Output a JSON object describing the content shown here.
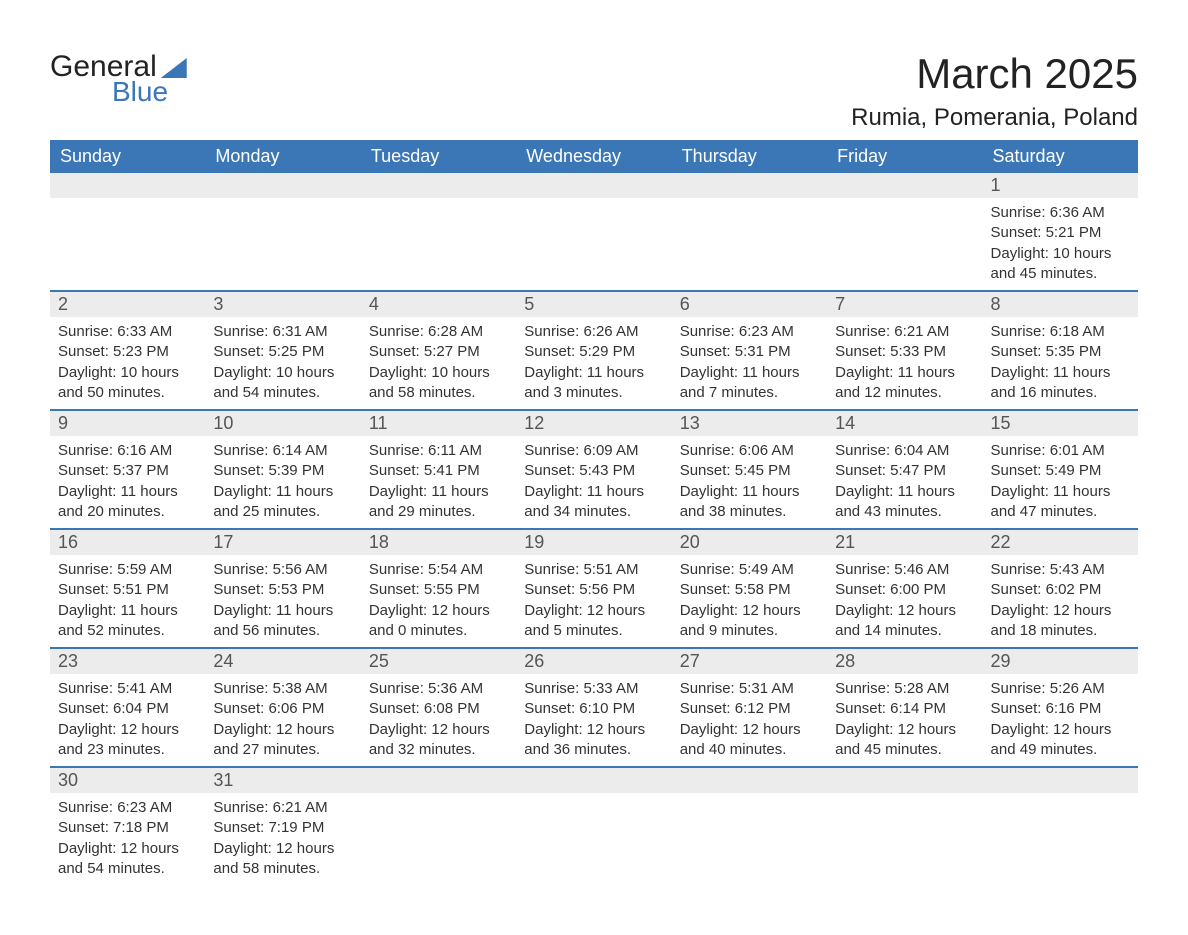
{
  "branding": {
    "logo_word1": "General",
    "logo_word2": "Blue",
    "logo_accent_color": "#3b77b7"
  },
  "header": {
    "title": "March 2025",
    "location": "Rumia, Pomerania, Poland"
  },
  "calendar": {
    "type": "table",
    "background_color": "#ffffff",
    "header_bg": "#3b77b7",
    "header_fg": "#ffffff",
    "daynum_bg": "#ececec",
    "row_divider_color": "#3b77b7",
    "text_color": "#333333",
    "title_fontsize": 42,
    "location_fontsize": 24,
    "header_fontsize": 18,
    "body_fontsize": 15,
    "columns": [
      "Sunday",
      "Monday",
      "Tuesday",
      "Wednesday",
      "Thursday",
      "Friday",
      "Saturday"
    ],
    "weeks": [
      [
        {
          "day": "",
          "sunrise": "",
          "sunset": "",
          "daylight": ""
        },
        {
          "day": "",
          "sunrise": "",
          "sunset": "",
          "daylight": ""
        },
        {
          "day": "",
          "sunrise": "",
          "sunset": "",
          "daylight": ""
        },
        {
          "day": "",
          "sunrise": "",
          "sunset": "",
          "daylight": ""
        },
        {
          "day": "",
          "sunrise": "",
          "sunset": "",
          "daylight": ""
        },
        {
          "day": "",
          "sunrise": "",
          "sunset": "",
          "daylight": ""
        },
        {
          "day": "1",
          "sunrise": "Sunrise: 6:36 AM",
          "sunset": "Sunset: 5:21 PM",
          "daylight": "Daylight: 10 hours and 45 minutes."
        }
      ],
      [
        {
          "day": "2",
          "sunrise": "Sunrise: 6:33 AM",
          "sunset": "Sunset: 5:23 PM",
          "daylight": "Daylight: 10 hours and 50 minutes."
        },
        {
          "day": "3",
          "sunrise": "Sunrise: 6:31 AM",
          "sunset": "Sunset: 5:25 PM",
          "daylight": "Daylight: 10 hours and 54 minutes."
        },
        {
          "day": "4",
          "sunrise": "Sunrise: 6:28 AM",
          "sunset": "Sunset: 5:27 PM",
          "daylight": "Daylight: 10 hours and 58 minutes."
        },
        {
          "day": "5",
          "sunrise": "Sunrise: 6:26 AM",
          "sunset": "Sunset: 5:29 PM",
          "daylight": "Daylight: 11 hours and 3 minutes."
        },
        {
          "day": "6",
          "sunrise": "Sunrise: 6:23 AM",
          "sunset": "Sunset: 5:31 PM",
          "daylight": "Daylight: 11 hours and 7 minutes."
        },
        {
          "day": "7",
          "sunrise": "Sunrise: 6:21 AM",
          "sunset": "Sunset: 5:33 PM",
          "daylight": "Daylight: 11 hours and 12 minutes."
        },
        {
          "day": "8",
          "sunrise": "Sunrise: 6:18 AM",
          "sunset": "Sunset: 5:35 PM",
          "daylight": "Daylight: 11 hours and 16 minutes."
        }
      ],
      [
        {
          "day": "9",
          "sunrise": "Sunrise: 6:16 AM",
          "sunset": "Sunset: 5:37 PM",
          "daylight": "Daylight: 11 hours and 20 minutes."
        },
        {
          "day": "10",
          "sunrise": "Sunrise: 6:14 AM",
          "sunset": "Sunset: 5:39 PM",
          "daylight": "Daylight: 11 hours and 25 minutes."
        },
        {
          "day": "11",
          "sunrise": "Sunrise: 6:11 AM",
          "sunset": "Sunset: 5:41 PM",
          "daylight": "Daylight: 11 hours and 29 minutes."
        },
        {
          "day": "12",
          "sunrise": "Sunrise: 6:09 AM",
          "sunset": "Sunset: 5:43 PM",
          "daylight": "Daylight: 11 hours and 34 minutes."
        },
        {
          "day": "13",
          "sunrise": "Sunrise: 6:06 AM",
          "sunset": "Sunset: 5:45 PM",
          "daylight": "Daylight: 11 hours and 38 minutes."
        },
        {
          "day": "14",
          "sunrise": "Sunrise: 6:04 AM",
          "sunset": "Sunset: 5:47 PM",
          "daylight": "Daylight: 11 hours and 43 minutes."
        },
        {
          "day": "15",
          "sunrise": "Sunrise: 6:01 AM",
          "sunset": "Sunset: 5:49 PM",
          "daylight": "Daylight: 11 hours and 47 minutes."
        }
      ],
      [
        {
          "day": "16",
          "sunrise": "Sunrise: 5:59 AM",
          "sunset": "Sunset: 5:51 PM",
          "daylight": "Daylight: 11 hours and 52 minutes."
        },
        {
          "day": "17",
          "sunrise": "Sunrise: 5:56 AM",
          "sunset": "Sunset: 5:53 PM",
          "daylight": "Daylight: 11 hours and 56 minutes."
        },
        {
          "day": "18",
          "sunrise": "Sunrise: 5:54 AM",
          "sunset": "Sunset: 5:55 PM",
          "daylight": "Daylight: 12 hours and 0 minutes."
        },
        {
          "day": "19",
          "sunrise": "Sunrise: 5:51 AM",
          "sunset": "Sunset: 5:56 PM",
          "daylight": "Daylight: 12 hours and 5 minutes."
        },
        {
          "day": "20",
          "sunrise": "Sunrise: 5:49 AM",
          "sunset": "Sunset: 5:58 PM",
          "daylight": "Daylight: 12 hours and 9 minutes."
        },
        {
          "day": "21",
          "sunrise": "Sunrise: 5:46 AM",
          "sunset": "Sunset: 6:00 PM",
          "daylight": "Daylight: 12 hours and 14 minutes."
        },
        {
          "day": "22",
          "sunrise": "Sunrise: 5:43 AM",
          "sunset": "Sunset: 6:02 PM",
          "daylight": "Daylight: 12 hours and 18 minutes."
        }
      ],
      [
        {
          "day": "23",
          "sunrise": "Sunrise: 5:41 AM",
          "sunset": "Sunset: 6:04 PM",
          "daylight": "Daylight: 12 hours and 23 minutes."
        },
        {
          "day": "24",
          "sunrise": "Sunrise: 5:38 AM",
          "sunset": "Sunset: 6:06 PM",
          "daylight": "Daylight: 12 hours and 27 minutes."
        },
        {
          "day": "25",
          "sunrise": "Sunrise: 5:36 AM",
          "sunset": "Sunset: 6:08 PM",
          "daylight": "Daylight: 12 hours and 32 minutes."
        },
        {
          "day": "26",
          "sunrise": "Sunrise: 5:33 AM",
          "sunset": "Sunset: 6:10 PM",
          "daylight": "Daylight: 12 hours and 36 minutes."
        },
        {
          "day": "27",
          "sunrise": "Sunrise: 5:31 AM",
          "sunset": "Sunset: 6:12 PM",
          "daylight": "Daylight: 12 hours and 40 minutes."
        },
        {
          "day": "28",
          "sunrise": "Sunrise: 5:28 AM",
          "sunset": "Sunset: 6:14 PM",
          "daylight": "Daylight: 12 hours and 45 minutes."
        },
        {
          "day": "29",
          "sunrise": "Sunrise: 5:26 AM",
          "sunset": "Sunset: 6:16 PM",
          "daylight": "Daylight: 12 hours and 49 minutes."
        }
      ],
      [
        {
          "day": "30",
          "sunrise": "Sunrise: 6:23 AM",
          "sunset": "Sunset: 7:18 PM",
          "daylight": "Daylight: 12 hours and 54 minutes."
        },
        {
          "day": "31",
          "sunrise": "Sunrise: 6:21 AM",
          "sunset": "Sunset: 7:19 PM",
          "daylight": "Daylight: 12 hours and 58 minutes."
        },
        {
          "day": "",
          "sunrise": "",
          "sunset": "",
          "daylight": ""
        },
        {
          "day": "",
          "sunrise": "",
          "sunset": "",
          "daylight": ""
        },
        {
          "day": "",
          "sunrise": "",
          "sunset": "",
          "daylight": ""
        },
        {
          "day": "",
          "sunrise": "",
          "sunset": "",
          "daylight": ""
        },
        {
          "day": "",
          "sunrise": "",
          "sunset": "",
          "daylight": ""
        }
      ]
    ]
  }
}
